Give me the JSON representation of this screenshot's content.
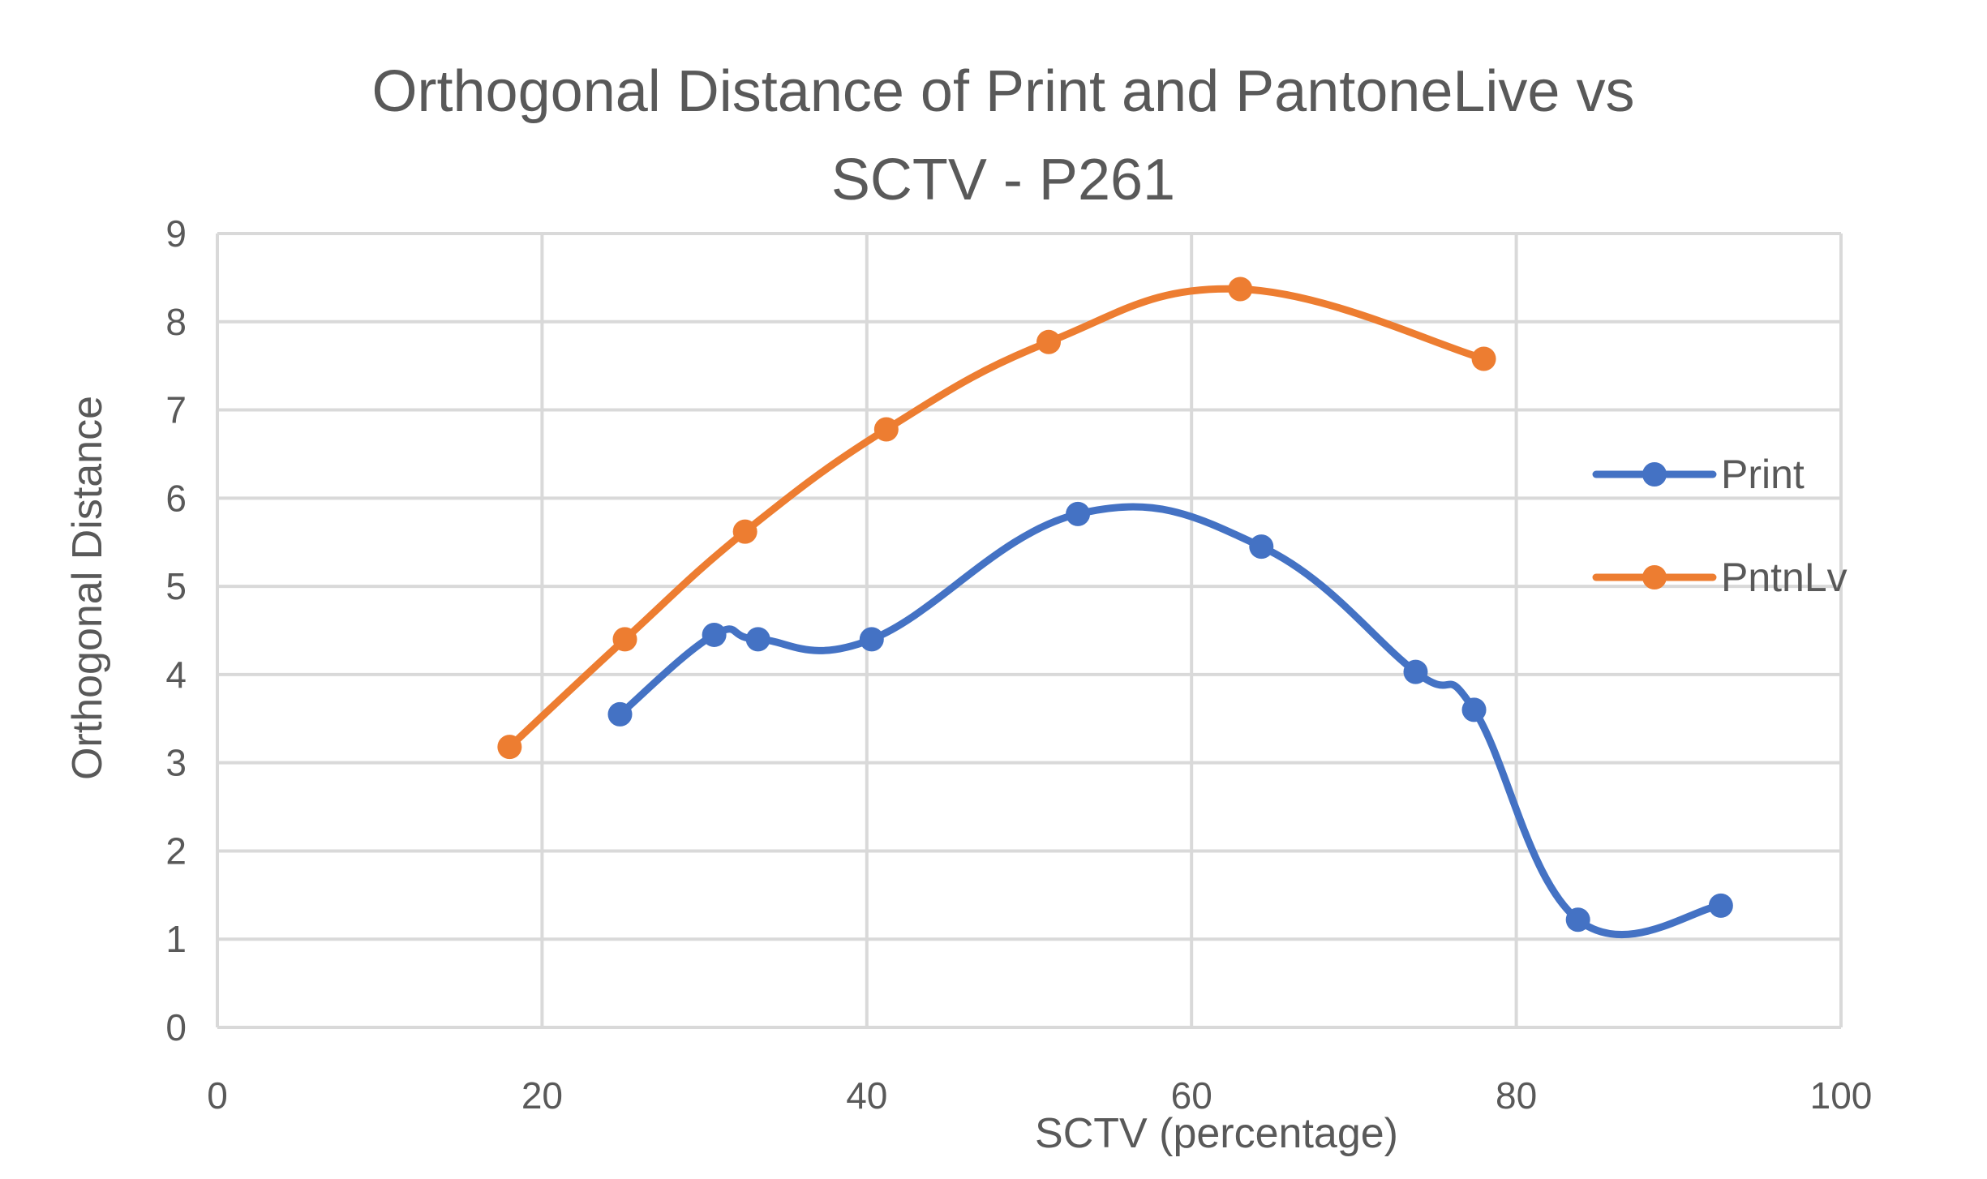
{
  "chart_data": {
    "type": "scatter",
    "title_lines": [
      "Orthogonal Distance of Print and PantoneLive vs",
      "SCTV - P261"
    ],
    "xlabel": "SCTV (percentage)",
    "ylabel": "Orthogonal  Distance",
    "xlim": [
      0,
      100
    ],
    "ylim": [
      0,
      9
    ],
    "x_ticks": [
      "0",
      "20",
      "40",
      "60",
      "80",
      "100"
    ],
    "y_ticks": [
      "0",
      "1",
      "2",
      "3",
      "4",
      "5",
      "6",
      "7",
      "8",
      "9"
    ],
    "grid": true,
    "legend_position": "right",
    "smoothed": true,
    "series": [
      {
        "name": "Print",
        "color": "#4472C4",
        "x": [
          24.8,
          30.6,
          33.3,
          40.3,
          53.0,
          64.3,
          73.8,
          77.4,
          83.8,
          92.6
        ],
        "y": [
          3.55,
          4.45,
          4.4,
          4.4,
          5.82,
          5.45,
          4.03,
          3.6,
          1.22,
          1.38
        ]
      },
      {
        "name": "PntnLv",
        "color": "#ED7D31",
        "x": [
          18.0,
          25.1,
          32.5,
          41.2,
          51.2,
          63.0,
          78.0
        ],
        "y": [
          3.18,
          4.4,
          5.62,
          6.78,
          7.77,
          8.37,
          7.58
        ]
      }
    ]
  }
}
